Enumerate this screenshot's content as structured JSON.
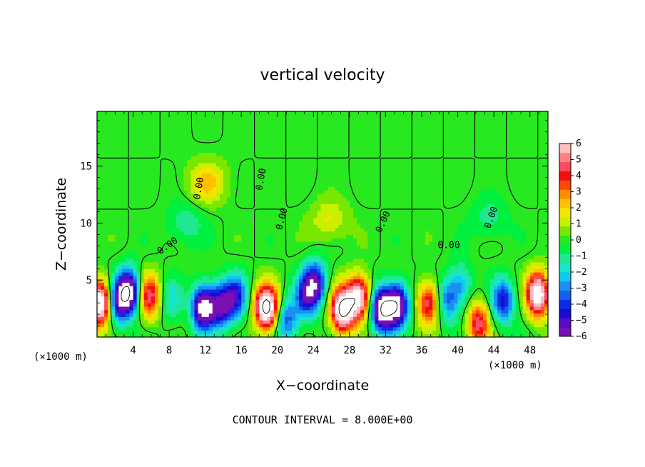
{
  "chart_data": {
    "type": "heatmap",
    "title": "vertical velocity",
    "xlabel": "X−coordinate",
    "ylabel": "Z−coordinate",
    "x_units": "(×1000 m)",
    "y_units": "(×1000 m)",
    "xlim": [
      0,
      50
    ],
    "ylim": [
      0,
      19.8
    ],
    "x_ticks": [
      4,
      8,
      12,
      16,
      20,
      24,
      28,
      32,
      36,
      40,
      44,
      48
    ],
    "y_ticks": [
      5,
      10,
      15
    ],
    "colorbar": {
      "range": [
        -6,
        6
      ],
      "ticks": [
        "6",
        "5",
        "4",
        "3",
        "2",
        "1",
        "0",
        "−1",
        "−2",
        "−3",
        "−4",
        "−5",
        "−6"
      ],
      "colors": [
        "#7a10b4",
        "#5a0ac8",
        "#1a0ad2",
        "#0a2ce6",
        "#1060f0",
        "#1c90f0",
        "#10c8f0",
        "#18e6c8",
        "#20e890",
        "#00f040",
        "#28e820",
        "#78e800",
        "#c8f000",
        "#f0e600",
        "#ffc000",
        "#ff8c00",
        "#ff4800",
        "#f01010",
        "#ff4a62",
        "#ff8080",
        "#ffbcbc"
      ]
    },
    "contour_label": "0.00",
    "contour_interval_text": "CONTOUR INTERVAL =  8.000E+00",
    "field_features": [
      {
        "x": 0.4,
        "z": 3.0,
        "w": 8.5
      },
      {
        "x": 2.2,
        "z": 3.0,
        "w": -4.5
      },
      {
        "x": 3.5,
        "z": 4.0,
        "w": -7.5
      },
      {
        "x": 5.8,
        "z": 3.6,
        "w": 4.8
      },
      {
        "x": 8.2,
        "z": 3.2,
        "w": -1.8
      },
      {
        "x": 11.8,
        "z": 2.6,
        "w": -7.5
      },
      {
        "x": 13.8,
        "z": 2.8,
        "w": -5.2
      },
      {
        "x": 15.4,
        "z": 3.6,
        "w": -4.2
      },
      {
        "x": 18.8,
        "z": 2.6,
        "w": 9.0
      },
      {
        "x": 21.0,
        "z": 1.5,
        "w": -3.5
      },
      {
        "x": 23.2,
        "z": 3.6,
        "w": -4.2
      },
      {
        "x": 24.2,
        "z": 4.8,
        "w": -5.0
      },
      {
        "x": 27.2,
        "z": 2.4,
        "w": 8.5
      },
      {
        "x": 29.0,
        "z": 3.5,
        "w": 7.0
      },
      {
        "x": 31.6,
        "z": 2.4,
        "w": -7.5
      },
      {
        "x": 33.3,
        "z": 2.8,
        "w": -7.0
      },
      {
        "x": 36.8,
        "z": 3.0,
        "w": 4.8
      },
      {
        "x": 38.8,
        "z": 3.2,
        "w": -3.2
      },
      {
        "x": 40.3,
        "z": 4.6,
        "w": -2.5
      },
      {
        "x": 42.3,
        "z": 1.2,
        "w": 4.6
      },
      {
        "x": 45.0,
        "z": 3.2,
        "w": -4.5
      },
      {
        "x": 48.9,
        "z": 3.8,
        "w": 8.0
      },
      {
        "x": 12.2,
        "z": 13.6,
        "w": 2.4
      },
      {
        "x": 9.8,
        "z": 10.0,
        "w": -1.4
      },
      {
        "x": 25.8,
        "z": 10.3,
        "w": 1.6
      },
      {
        "x": 43.5,
        "z": 10.5,
        "w": -1.2
      }
    ]
  }
}
